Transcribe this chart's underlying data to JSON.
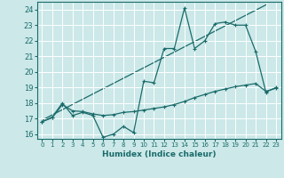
{
  "xlabel": "Humidex (Indice chaleur)",
  "background_color": "#cce8e8",
  "grid_color": "#ffffff",
  "line_color": "#1a6b6b",
  "xlim": [
    -0.5,
    23.5
  ],
  "ylim": [
    15.7,
    24.5
  ],
  "yticks": [
    16,
    17,
    18,
    19,
    20,
    21,
    22,
    23,
    24
  ],
  "xticks": [
    0,
    1,
    2,
    3,
    4,
    5,
    6,
    7,
    8,
    9,
    10,
    11,
    12,
    13,
    14,
    15,
    16,
    17,
    18,
    19,
    20,
    21,
    22,
    23
  ],
  "line1_x": [
    0,
    1,
    2,
    3,
    4,
    5,
    6,
    7,
    8,
    9,
    10,
    11,
    12,
    13,
    14,
    15,
    16,
    17,
    18,
    19,
    20,
    21,
    22,
    23
  ],
  "line1_y": [
    16.8,
    17.1,
    18.0,
    17.2,
    17.4,
    17.2,
    15.8,
    16.0,
    16.5,
    16.1,
    19.4,
    19.3,
    21.5,
    21.5,
    24.1,
    21.5,
    22.0,
    23.1,
    23.2,
    23.0,
    23.0,
    21.3,
    18.7,
    19.0
  ],
  "line2_x": [
    0,
    1,
    2,
    3,
    4,
    5,
    6,
    7,
    8,
    9,
    10,
    11,
    12,
    13,
    14,
    15,
    16,
    17,
    18,
    19,
    20,
    21,
    22,
    23
  ],
  "line2_y": [
    16.8,
    17.05,
    17.9,
    17.5,
    17.45,
    17.3,
    17.2,
    17.25,
    17.4,
    17.45,
    17.55,
    17.65,
    17.75,
    17.9,
    18.1,
    18.35,
    18.55,
    18.75,
    18.9,
    19.05,
    19.15,
    19.25,
    18.75,
    18.95
  ],
  "line3_x": [
    0,
    22
  ],
  "line3_y": [
    16.9,
    24.3
  ]
}
